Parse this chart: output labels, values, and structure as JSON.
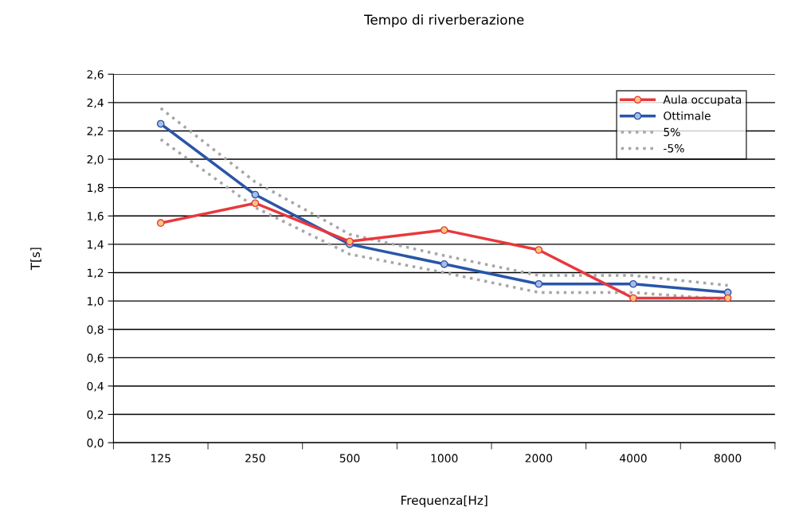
{
  "chart_data": {
    "type": "line",
    "title": "Tempo di riverberazione",
    "xlabel": "Frequenza[Hz]",
    "ylabel": "T[s]",
    "categories": [
      "125",
      "250",
      "500",
      "1000",
      "2000",
      "4000",
      "8000"
    ],
    "series": [
      {
        "name": "Aula occupata",
        "color": "#e8383d",
        "marker": "circle",
        "line_style": "solid",
        "values": [
          1.55,
          1.69,
          1.42,
          1.5,
          1.36,
          1.02,
          1.02
        ]
      },
      {
        "name": "Ottimale",
        "color": "#2a55a8",
        "marker": "circle",
        "line_style": "solid",
        "values": [
          2.25,
          1.75,
          1.4,
          1.26,
          1.12,
          1.12,
          1.06
        ]
      },
      {
        "name": "5%",
        "color": "#a6a6a6",
        "marker": "none",
        "line_style": "dotted",
        "values": [
          2.36,
          1.84,
          1.47,
          1.32,
          1.18,
          1.18,
          1.11
        ]
      },
      {
        "name": "-5%",
        "color": "#a6a6a6",
        "marker": "none",
        "line_style": "dotted",
        "values": [
          2.14,
          1.66,
          1.33,
          1.2,
          1.06,
          1.06,
          1.01
        ]
      }
    ],
    "ylim": [
      0,
      2.6
    ],
    "yticks": [
      {
        "value": 0,
        "label": "0,0"
      },
      {
        "value": 0.2,
        "label": "0,2"
      },
      {
        "value": 0.4,
        "label": "0,4"
      },
      {
        "value": 0.6,
        "label": "0,6"
      },
      {
        "value": 0.8,
        "label": "0,8"
      },
      {
        "value": 1.0,
        "label": "1,0"
      },
      {
        "value": 1.2,
        "label": "1,2"
      },
      {
        "value": 1.4,
        "label": "1,4"
      },
      {
        "value": 1.6,
        "label": "1,6"
      },
      {
        "value": 1.8,
        "label": "1,8"
      },
      {
        "value": 2.0,
        "label": "2,0"
      },
      {
        "value": 2.2,
        "label": "2,2"
      },
      {
        "value": 2.4,
        "label": "2,4"
      },
      {
        "value": 2.6,
        "label": "2,6"
      }
    ],
    "grid": "y",
    "legend": "top right"
  }
}
